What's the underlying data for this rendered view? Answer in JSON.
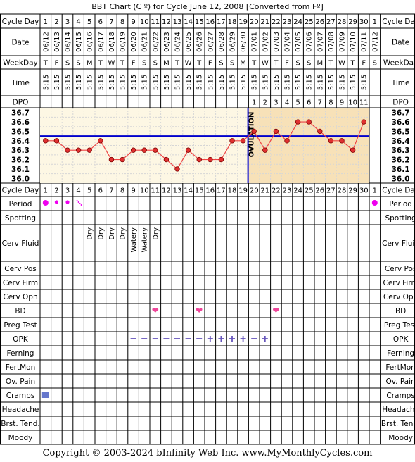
{
  "title": "BBT Chart (C º) for Cycle June 12, 2008  [Converted from Fº]",
  "row_labels": {
    "cycle_day": "Cycle Day",
    "date": "Date",
    "weekday": "WeekDay",
    "time": "Time",
    "dpo": "DPO",
    "period": "Period",
    "spotting": "Spotting",
    "cerv_fluid": "Cerv Fluid",
    "cerv_pos": "Cerv Pos",
    "cerv_firm": "Cerv Firm",
    "cerv_opn": "Cerv Opn",
    "bd": "BD",
    "preg_test": "Preg Test",
    "opk": "OPK",
    "ferning": "Ferning",
    "fertmon": "FertMon",
    "ov_pain": "Ov. Pain",
    "cramps": "Cramps",
    "headache": "Headache",
    "brst_tend": "Brst. Tend.",
    "moody": "Moody"
  },
  "cycle_days": [
    "1",
    "2",
    "3",
    "4",
    "5",
    "6",
    "7",
    "8",
    "9",
    "10",
    "11",
    "12",
    "13",
    "14",
    "15",
    "16",
    "17",
    "18",
    "19",
    "20",
    "21",
    "22",
    "23",
    "24",
    "25",
    "26",
    "27",
    "28",
    "29",
    "30",
    "1"
  ],
  "dates": [
    "06/12",
    "06/13",
    "06/14",
    "06/15",
    "06/16",
    "06/17",
    "06/18",
    "06/19",
    "06/20",
    "06/21",
    "06/22",
    "06/23",
    "06/24",
    "06/25",
    "06/26",
    "06/27",
    "06/28",
    "06/29",
    "06/30",
    "07/01",
    "07/02",
    "07/03",
    "07/04",
    "07/05",
    "07/06",
    "07/07",
    "07/08",
    "07/09",
    "07/10",
    "07/11",
    "07/12"
  ],
  "weekdays": [
    "T",
    "F",
    "S",
    "S",
    "M",
    "T",
    "W",
    "T",
    "F",
    "S",
    "S",
    "M",
    "T",
    "W",
    "T",
    "F",
    "S",
    "S",
    "M",
    "T",
    "W",
    "T",
    "F",
    "S",
    "S",
    "M",
    "T",
    "W",
    "T",
    "F",
    "S"
  ],
  "times": [
    "5:15",
    "5:15",
    "5:15",
    "5:15",
    "5:15",
    "5:15",
    "5:15",
    "5:15",
    "5:15",
    "5:15",
    "5:15",
    "5:15",
    "5:15",
    "5:15",
    "5:15",
    "5:15",
    "5:15",
    "5:15",
    "5:15",
    "5:15",
    "5:15",
    "5:15",
    "5:15",
    "5:15",
    "5:15",
    "5:15",
    "5:15",
    "5:15",
    "5:15",
    "5:15",
    ""
  ],
  "dpo": [
    "",
    "",
    "",
    "",
    "",
    "",
    "",
    "",
    "",
    "",
    "",
    "",
    "",
    "",
    "",
    "",
    "",
    "",
    "",
    "1",
    "2",
    "3",
    "4",
    "5",
    "6",
    "7",
    "8",
    "9",
    "10",
    "11",
    ""
  ],
  "ovulation_label": "OVULATION",
  "cerv_fluid": [
    "",
    "",
    "",
    "",
    "Dry",
    "Dry",
    "Dry",
    "Dry",
    "Watery",
    "Watery",
    "Dry",
    "",
    "",
    "",
    "",
    "",
    "",
    "",
    "",
    "",
    "",
    "",
    "",
    "",
    "",
    "",
    "",
    "",
    "",
    "",
    ""
  ],
  "period": [
    "big",
    "small",
    "small",
    "spot",
    "",
    "",
    "",
    "",
    "",
    "",
    "",
    "",
    "",
    "",
    "",
    "",
    "",
    "",
    "",
    "",
    "",
    "",
    "",
    "",
    "",
    "",
    "",
    "",
    "",
    "",
    "big"
  ],
  "bd": [
    "",
    "",
    "",
    "",
    "",
    "",
    "",
    "",
    "",
    "",
    "yes",
    "",
    "",
    "",
    "yes",
    "",
    "",
    "",
    "",
    "",
    "",
    "yes",
    "",
    "",
    "",
    "",
    "",
    "",
    "",
    "",
    ""
  ],
  "opk": [
    "",
    "",
    "",
    "",
    "",
    "",
    "",
    "",
    "minus",
    "minus",
    "minus",
    "minus",
    "minus",
    "minus",
    "minus",
    "plus",
    "plus",
    "plus",
    "plus",
    "minus",
    "plus",
    "",
    "",
    "",
    "",
    "",
    "",
    "",
    "",
    "",
    ""
  ],
  "cramps": [
    "yes",
    "",
    "",
    "",
    "",
    "",
    "",
    "",
    "",
    "",
    "",
    "",
    "",
    "",
    "",
    "",
    "",
    "",
    "",
    "",
    "",
    "",
    "",
    "",
    "",
    "",
    "",
    "",
    "",
    "",
    ""
  ],
  "copyright": "Copyright © 2003-2024 bInfinity Web Inc.     www.MyMonthlyCycles.com",
  "colors": {
    "pre_ov_bg": "#fdf7e4",
    "post_ov_bg": "#f7e1b8",
    "temp_line": "#ee4444",
    "temp_point": "#e03030",
    "coverline": "#0000cc",
    "ovulation_line": "#0000cc",
    "period_dot": "#ee00ee",
    "heart": "#ee4499",
    "opk": "#6655bb",
    "cramps": "#6677cc"
  },
  "chart_data": {
    "type": "line",
    "title": "BBT Chart (C º) for Cycle June 12, 2008  [Converted from Fº]",
    "xlabel": "Cycle Day",
    "ylabel": "",
    "x": [
      1,
      2,
      3,
      4,
      5,
      6,
      7,
      8,
      9,
      10,
      11,
      12,
      13,
      14,
      15,
      16,
      17,
      18,
      19,
      20,
      21,
      22,
      23,
      24,
      25,
      26,
      27,
      28,
      29,
      30
    ],
    "series": [
      {
        "values": [
          36.4,
          36.4,
          36.3,
          36.3,
          36.3,
          36.4,
          36.2,
          36.2,
          36.3,
          36.3,
          36.3,
          36.2,
          36.1,
          36.3,
          36.2,
          36.2,
          36.2,
          36.4,
          36.4,
          36.5,
          36.3,
          36.5,
          36.4,
          36.6,
          36.6,
          36.5,
          36.4,
          36.4,
          36.3,
          36.6
        ]
      }
    ],
    "yticks": [
      "36.7",
      "36.6",
      "36.5",
      "36.4",
      "36.3",
      "36.2",
      "36.1",
      "36.0"
    ],
    "ylim": [
      36.0,
      36.7
    ],
    "coverline": 36.45,
    "ovulation_day": 19,
    "grid": true
  }
}
